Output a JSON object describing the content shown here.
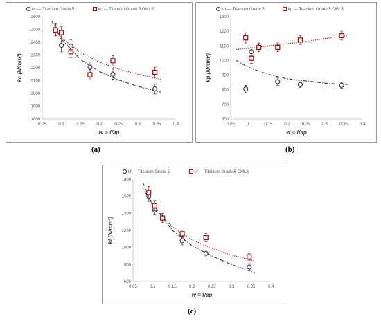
{
  "chart_data": [
    {
      "id": "a",
      "type": "scatter",
      "panel_label": "(a)",
      "xlabel": "w = f/ap",
      "ylabel": "kc (N/mm²)",
      "xlim": [
        0.05,
        0.4
      ],
      "ylim": [
        1800,
        2600
      ],
      "xticks": [
        "0.05",
        "0.1",
        "0.15",
        "0.2",
        "0.25",
        "0.3",
        "0.35",
        "0.4"
      ],
      "yticks": [
        "1800",
        "1900",
        "2000",
        "2100",
        "2200",
        "2300",
        "2400",
        "2500",
        "2600"
      ],
      "legend_position": "top",
      "grid": false,
      "series": [
        {
          "name": "kc — Titanium Grade 5",
          "marker": "circle",
          "color": "#404040",
          "trend": "dash-dot",
          "x": [
            0.085,
            0.1,
            0.125,
            0.175,
            0.235,
            0.345
          ],
          "y": [
            2500,
            2375,
            2370,
            2205,
            2150,
            2035
          ],
          "err": [
            50,
            50,
            50,
            40,
            40,
            40
          ]
        },
        {
          "name": "kc — Titanium Grade 5 DMLS",
          "marker": "square",
          "color": "#c00000",
          "trend": "dotted",
          "x": [
            0.085,
            0.1,
            0.125,
            0.175,
            0.235,
            0.345
          ],
          "y": [
            2495,
            2475,
            2325,
            2145,
            2255,
            2165
          ],
          "err": [
            45,
            45,
            45,
            40,
            40,
            40
          ]
        }
      ],
      "trend_range": [
        0.075,
        0.36
      ],
      "trends": [
        {
          "x": [
            0.075,
            0.1,
            0.15,
            0.2,
            0.25,
            0.3,
            0.36
          ],
          "y": [
            2565,
            2425,
            2265,
            2170,
            2105,
            2055,
            2010
          ]
        },
        {
          "x": [
            0.075,
            0.1,
            0.15,
            0.2,
            0.25,
            0.3,
            0.36
          ],
          "y": [
            2530,
            2435,
            2320,
            2245,
            2190,
            2150,
            2110
          ]
        }
      ]
    },
    {
      "id": "b",
      "type": "scatter",
      "panel_label": "(b)",
      "xlabel": "w = f/ap",
      "ylabel": "kp (N/mm²)",
      "xlim": [
        0.05,
        0.4
      ],
      "ylim": [
        600,
        1300
      ],
      "xticks": [
        "0.05",
        "0.1",
        "0.15",
        "0.2",
        "0.25",
        "0.3",
        "0.35",
        "0.4"
      ],
      "yticks": [
        "600",
        "700",
        "800",
        "900",
        "1000",
        "1100",
        "1200",
        "1300"
      ],
      "legend_position": "top",
      "grid": false,
      "series": [
        {
          "name": "kp — Titanium Grade 5",
          "marker": "circle",
          "color": "#404040",
          "trend": "dash-dot",
          "x": [
            0.09,
            0.105,
            0.125,
            0.175,
            0.235,
            0.345
          ],
          "y": [
            805,
            1060,
            1090,
            855,
            835,
            830
          ],
          "err": [
            25,
            25,
            25,
            25,
            20,
            20
          ]
        },
        {
          "name": "kp — Titanium Grade 5 DMLS",
          "marker": "square",
          "color": "#c00000",
          "trend": "dotted",
          "x": [
            0.09,
            0.105,
            0.125,
            0.175,
            0.235,
            0.345
          ],
          "y": [
            1155,
            1015,
            1090,
            1090,
            1140,
            1170
          ],
          "err": [
            35,
            35,
            30,
            30,
            30,
            30
          ]
        }
      ],
      "trend_range": [
        0.065,
        0.36
      ],
      "trends": [
        {
          "x": [
            0.065,
            0.1,
            0.15,
            0.2,
            0.25,
            0.3,
            0.36
          ],
          "y": [
            1000,
            950,
            905,
            875,
            860,
            845,
            835
          ]
        },
        {
          "x": [
            0.065,
            0.1,
            0.15,
            0.2,
            0.25,
            0.3,
            0.36
          ],
          "y": [
            1075,
            1085,
            1100,
            1115,
            1130,
            1150,
            1170
          ]
        }
      ]
    },
    {
      "id": "c",
      "type": "scatter",
      "panel_label": "(c)",
      "xlabel": "w = f/ap",
      "ylabel": "kf (N/mm²)",
      "xlim": [
        0.05,
        0.4
      ],
      "ylim": [
        600,
        1800
      ],
      "xticks": [
        "0.05",
        "0.1",
        "0.15",
        "0.2",
        "0.25",
        "0.3",
        "0.35",
        "0.4"
      ],
      "yticks": [
        "600",
        "800",
        "1000",
        "1200",
        "1400",
        "1600",
        "1800"
      ],
      "legend_position": "top",
      "grid": false,
      "series": [
        {
          "name": "kf — Titanium Grade 5",
          "marker": "circle",
          "color": "#404040",
          "trend": "dash-dot",
          "x": [
            0.09,
            0.105,
            0.125,
            0.175,
            0.235,
            0.345
          ],
          "y": [
            1600,
            1440,
            1340,
            1080,
            930,
            770
          ],
          "err": [
            60,
            60,
            50,
            50,
            40,
            40
          ]
        },
        {
          "name": "kf — Titanium Grade 5 DMLS",
          "marker": "square",
          "color": "#c00000",
          "trend": "dotted",
          "x": [
            0.09,
            0.105,
            0.125,
            0.175,
            0.235,
            0.345
          ],
          "y": [
            1645,
            1490,
            1345,
            1160,
            1115,
            890
          ],
          "err": [
            70,
            60,
            55,
            45,
            50,
            40
          ]
        }
      ],
      "trend_range": [
        0.075,
        0.36
      ],
      "trends": [
        {
          "x": [
            0.075,
            0.1,
            0.15,
            0.2,
            0.25,
            0.3,
            0.36
          ],
          "y": [
            1760,
            1500,
            1200,
            1020,
            900,
            800,
            700
          ]
        },
        {
          "x": [
            0.075,
            0.1,
            0.15,
            0.2,
            0.25,
            0.3,
            0.36
          ],
          "y": [
            1700,
            1490,
            1240,
            1090,
            990,
            910,
            840
          ]
        }
      ]
    }
  ]
}
